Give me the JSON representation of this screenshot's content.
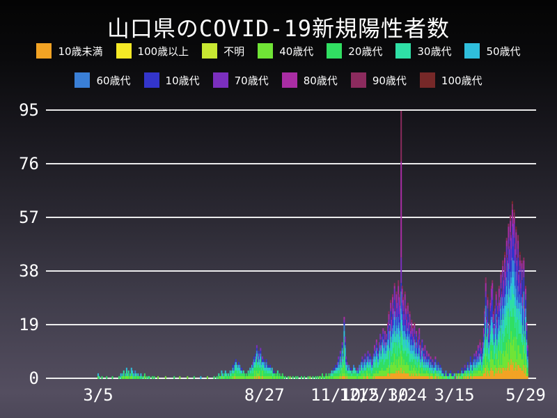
{
  "title": "山口県のCOVID-19新規陽性者数",
  "colors": {
    "background_top": "#040404",
    "background_bottom": "#544e60",
    "grid": "#fdfdfd",
    "text": "#ffffff"
  },
  "legend": {
    "rows": [
      [
        {
          "label": "10歳未満",
          "color": "#f2a324"
        },
        {
          "label": "100歳以上",
          "color": "#f5e926"
        },
        {
          "label": "不明",
          "color": "#c8e832"
        },
        {
          "label": "40歳代",
          "color": "#70e436"
        },
        {
          "label": "20歳代",
          "color": "#31df62"
        },
        {
          "label": "30歳代",
          "color": "#2fdfa6"
        },
        {
          "label": "50歳代",
          "color": "#2fbedc"
        }
      ],
      [
        {
          "label": "60歳代",
          "color": "#3a7fd6"
        },
        {
          "label": "10歳代",
          "color": "#3335cb"
        },
        {
          "label": "70歳代",
          "color": "#7b2fbe"
        },
        {
          "label": "80歳代",
          "color": "#a92da4"
        },
        {
          "label": "90歳代",
          "color": "#8c2b5e"
        },
        {
          "label": "100歳代",
          "color": "#762828"
        }
      ]
    ]
  },
  "chart_data": {
    "type": "bar",
    "stacked": true,
    "title": "山口県のCOVID-19新規陽性者数",
    "grid": "horizontal",
    "legend_position": "top",
    "ylim": [
      0,
      95
    ],
    "y_ticks": [
      0,
      19,
      38,
      57,
      76,
      95
    ],
    "x_ticks": [
      {
        "label": "3/5",
        "day": 0
      },
      {
        "label": "8/27",
        "day": 175
      },
      {
        "label": "11/10",
        "day": 250
      },
      {
        "label": "12/5",
        "day": 275
      },
      {
        "label": "12/30",
        "day": 300
      },
      {
        "label": "1/24",
        "day": 325
      },
      {
        "label": "3/15",
        "day": 375
      },
      {
        "label": "5/29",
        "day": 450
      }
    ],
    "series_stack_order": [
      "10歳未満",
      "100歳以上",
      "不明",
      "40歳代",
      "20歳代",
      "30歳代",
      "50歳代",
      "60歳代",
      "10歳代",
      "70歳代",
      "80歳代",
      "90歳代",
      "100歳代"
    ],
    "daily_totals": [
      2,
      1,
      0,
      0,
      1,
      0,
      0,
      0,
      0,
      1,
      0,
      0,
      0,
      0,
      0,
      1,
      0,
      0,
      0,
      0,
      0,
      0,
      1,
      0,
      2,
      1,
      2,
      3,
      1,
      2,
      4,
      2,
      3,
      1,
      2,
      4,
      3,
      2,
      1,
      3,
      2,
      1,
      2,
      1,
      1,
      2,
      1,
      0,
      1,
      2,
      0,
      1,
      0,
      1,
      1,
      0,
      0,
      1,
      0,
      1,
      0,
      0,
      0,
      1,
      0,
      0,
      0,
      0,
      0,
      0,
      0,
      1,
      0,
      0,
      0,
      0,
      0,
      0,
      0,
      0,
      1,
      0,
      0,
      0,
      0,
      0,
      1,
      0,
      0,
      0,
      0,
      0,
      0,
      0,
      1,
      0,
      0,
      0,
      0,
      0,
      0,
      1,
      0,
      0,
      0,
      0,
      0,
      0,
      1,
      0,
      0,
      0,
      0,
      0,
      0,
      1,
      0,
      0,
      0,
      0,
      0,
      0,
      1,
      0,
      0,
      1,
      0,
      2,
      1,
      1,
      3,
      2,
      1,
      2,
      3,
      2,
      1,
      2,
      1,
      3,
      2,
      3,
      5,
      4,
      6,
      7,
      5,
      4,
      6,
      5,
      3,
      4,
      2,
      3,
      2,
      1,
      2,
      1,
      3,
      2,
      4,
      3,
      5,
      6,
      8,
      7,
      9,
      12,
      8,
      10,
      9,
      11,
      6,
      8,
      7,
      6,
      5,
      7,
      4,
      5,
      4,
      5,
      3,
      4,
      2,
      3,
      2,
      1,
      2,
      3,
      1,
      2,
      1,
      1,
      2,
      1,
      0,
      1,
      0,
      0,
      1,
      0,
      1,
      0,
      0,
      1,
      0,
      0,
      1,
      0,
      1,
      0,
      0,
      0,
      1,
      0,
      0,
      1,
      0,
      0,
      0,
      1,
      0,
      1,
      0,
      0,
      1,
      0,
      0,
      1,
      0,
      1,
      0,
      1,
      1,
      0,
      2,
      1,
      0,
      1,
      2,
      1,
      1,
      2,
      1,
      2,
      3,
      2,
      4,
      3,
      5,
      4,
      6,
      8,
      5,
      10,
      7,
      13,
      9,
      22,
      15,
      8,
      6,
      4,
      5,
      3,
      4,
      2,
      3,
      5,
      4,
      3,
      2,
      4,
      3,
      5,
      4,
      6,
      8,
      5,
      7,
      9,
      6,
      8,
      10,
      7,
      9,
      8,
      6,
      7,
      9,
      12,
      10,
      14,
      11,
      9,
      13,
      16,
      12,
      15,
      18,
      14,
      17,
      13,
      16,
      20,
      24,
      18,
      28,
      22,
      30,
      26,
      34,
      25,
      31,
      28,
      35,
      30,
      27,
      95,
      33,
      29,
      24,
      31,
      26,
      22,
      27,
      20,
      24,
      18,
      21,
      19,
      16,
      20,
      14,
      17,
      12,
      15,
      18,
      13,
      10,
      14,
      11,
      9,
      12,
      8,
      10,
      7,
      9,
      6,
      8,
      5,
      7,
      4,
      6,
      8,
      5,
      4,
      6,
      3,
      5,
      4,
      2,
      3,
      1,
      2,
      3,
      1,
      2,
      1,
      2,
      3,
      1,
      2,
      1,
      2,
      1,
      2,
      1,
      3,
      2,
      1,
      2,
      4,
      3,
      2,
      5,
      3,
      4,
      6,
      4,
      5,
      8,
      6,
      4,
      7,
      9,
      6,
      10,
      8,
      12,
      9,
      14,
      11,
      8,
      13,
      18,
      25,
      36,
      22,
      30,
      16,
      20,
      28,
      33,
      35,
      24,
      19,
      26,
      31,
      22,
      27,
      33,
      29,
      38,
      32,
      42,
      36,
      45,
      40,
      50,
      44,
      55,
      48,
      58,
      52,
      63,
      57,
      60,
      48,
      54,
      44,
      51,
      38,
      45,
      35,
      42,
      30,
      43,
      26,
      33,
      20,
      12
    ],
    "composition_periods": [
      {
        "from": 0,
        "to": 139,
        "shares": {
          "10歳未満": 0.06,
          "10歳代": 0.05,
          "20歳代": 0.2,
          "30歳代": 0.16,
          "40歳代": 0.16,
          "50歳代": 0.14,
          "60歳代": 0.1,
          "70歳代": 0.07,
          "80歳代": 0.04,
          "90歳代": 0.02
        }
      },
      {
        "from": 140,
        "to": 229,
        "shares": {
          "10歳未満": 0.05,
          "10歳代": 0.09,
          "20歳代": 0.25,
          "30歳代": 0.17,
          "40歳代": 0.16,
          "50歳代": 0.12,
          "60歳代": 0.07,
          "70歳代": 0.05,
          "80歳代": 0.02,
          "90歳代": 0.01,
          "不明": 0.01
        }
      },
      {
        "from": 230,
        "to": 304,
        "shares": {
          "10歳未満": 0.05,
          "10歳代": 0.08,
          "20歳代": 0.22,
          "30歳代": 0.16,
          "40歳代": 0.15,
          "50歳代": 0.12,
          "60歳代": 0.09,
          "70歳代": 0.07,
          "80歳代": 0.04,
          "90歳代": 0.02
        }
      },
      {
        "from": 305,
        "to": 375,
        "shares": {
          "10歳未満": 0.08,
          "10歳代": 0.13,
          "20歳代": 0.15,
          "30歳代": 0.12,
          "40歳代": 0.13,
          "50歳代": 0.1,
          "60歳代": 0.08,
          "70歳代": 0.08,
          "80歳代": 0.07,
          "90歳代": 0.04,
          "100歳代": 0.01,
          "100歳以上": 0.005,
          "不明": 0.005
        }
      },
      {
        "from": 376,
        "to": 452,
        "shares": {
          "10歳未満": 0.09,
          "10歳代": 0.14,
          "20歳代": 0.15,
          "30歳代": 0.13,
          "40歳代": 0.14,
          "50歳代": 0.1,
          "60歳代": 0.08,
          "70歳代": 0.07,
          "80歳代": 0.06,
          "90歳代": 0.03,
          "100歳代": 0.01
        }
      }
    ],
    "composition_overrides": {
      "319": {
        "10歳未満": 0.04,
        "10歳代": 0.05,
        "20歳代": 0.06,
        "30歳代": 0.05,
        "40歳代": 0.06,
        "50歳代": 0.06,
        "60歳代": 0.06,
        "70歳代": 0.12,
        "80歳代": 0.35,
        "90歳代": 0.15
      }
    }
  }
}
